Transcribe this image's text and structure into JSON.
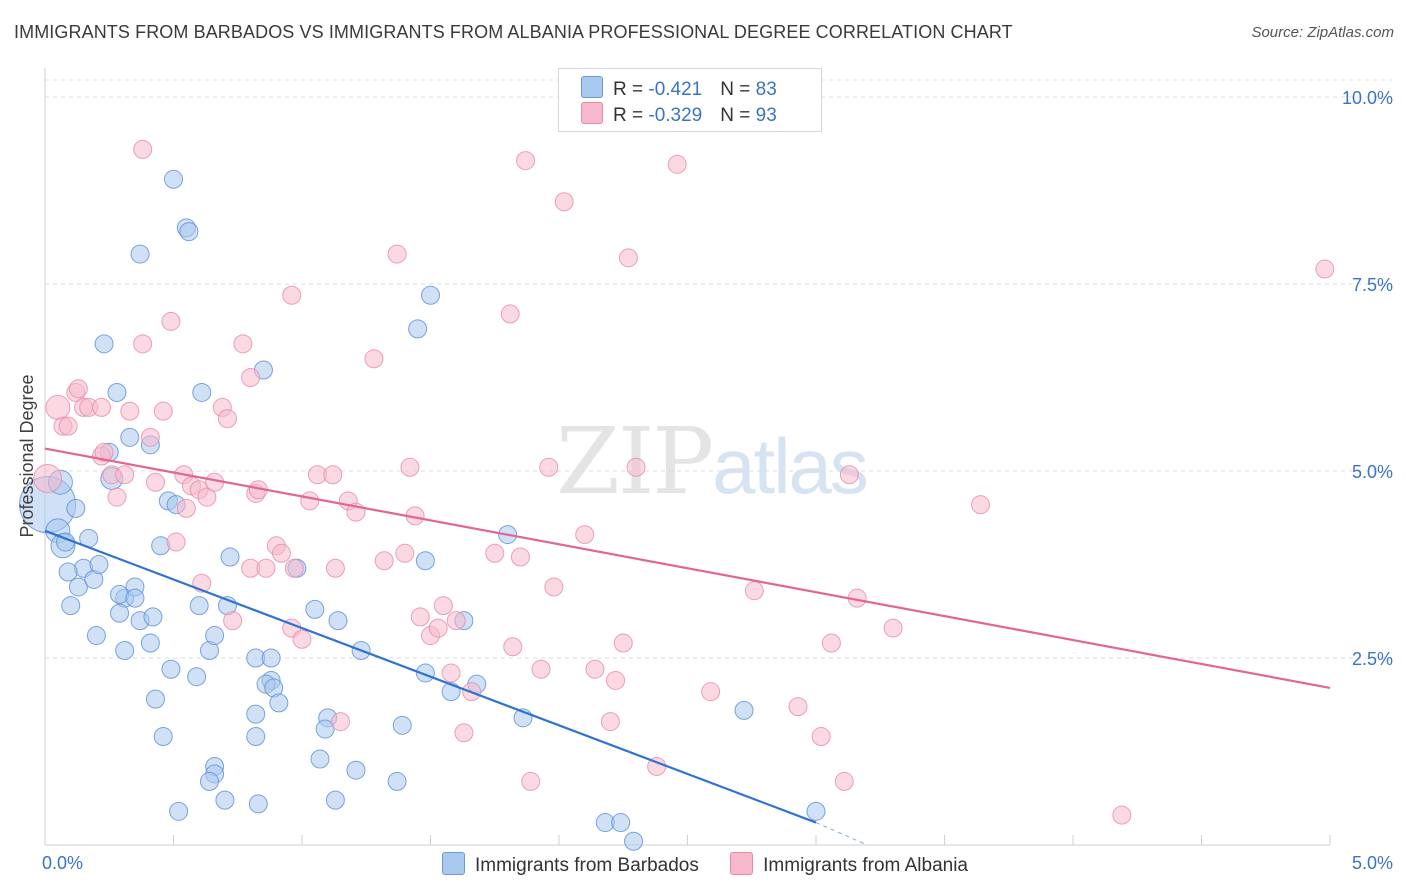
{
  "header": {
    "title": "IMMIGRANTS FROM BARBADOS VS IMMIGRANTS FROM ALBANIA PROFESSIONAL DEGREE CORRELATION CHART",
    "source": "Source: ZipAtlas.com"
  },
  "watermark": {
    "zip": "ZIP",
    "atlas": "atlas"
  },
  "legend": {
    "rows": [
      {
        "r_label": "R = ",
        "r_value": "-0.421",
        "n_label": "N = ",
        "n_value": "83",
        "color": "#a9c8ef"
      },
      {
        "r_label": "R = ",
        "r_value": "-0.329",
        "n_label": "N = ",
        "n_value": "93",
        "color": "#f6b9cc"
      }
    ]
  },
  "bottom_legend": [
    {
      "label": "Immigrants from Barbados",
      "color": "#a9c8ef"
    },
    {
      "label": "Immigrants from Albania",
      "color": "#f6b9cc"
    }
  ],
  "chart_data": {
    "type": "scatter",
    "title": "IMMIGRANTS FROM BARBADOS VS IMMIGRANTS FROM ALBANIA PROFESSIONAL DEGREE CORRELATION CHART",
    "xlabel": "",
    "ylabel": "Professional Degree",
    "xlim": [
      0,
      5
    ],
    "ylim": [
      0,
      10.5
    ],
    "x_tick_labels": [
      "0.0%",
      "5.0%"
    ],
    "y_ticks": [
      2.5,
      5.0,
      7.5,
      10.0
    ],
    "y_tick_labels": [
      "2.5%",
      "5.0%",
      "7.5%",
      "10.0%"
    ],
    "grid": true,
    "legend_position": "top-center",
    "series": [
      {
        "name": "Immigrants from Barbados",
        "color": "#a9c8ef",
        "stroke": "#5a8fd6",
        "trend": {
          "x": [
            0.0,
            3.0
          ],
          "y": [
            4.2,
            0.3
          ],
          "color": "#2f73d0",
          "dash_to": [
            3.2,
            0.0
          ]
        },
        "points": [
          [
            0.01,
            4.55,
            28
          ],
          [
            0.06,
            4.85,
            12
          ],
          [
            0.05,
            4.2,
            12
          ],
          [
            0.07,
            4.0,
            12
          ],
          [
            0.08,
            4.05,
            9
          ],
          [
            0.12,
            4.5,
            9
          ],
          [
            0.15,
            3.7,
            9
          ],
          [
            0.17,
            4.1,
            9
          ],
          [
            0.09,
            3.65,
            9
          ],
          [
            0.13,
            3.45,
            9
          ],
          [
            0.19,
            3.55,
            9
          ],
          [
            0.21,
            3.75,
            9
          ],
          [
            0.1,
            3.2,
            9
          ],
          [
            0.31,
            3.3,
            9
          ],
          [
            0.29,
            3.35,
            9
          ],
          [
            0.35,
            3.45,
            9
          ],
          [
            0.35,
            3.3,
            9
          ],
          [
            0.29,
            3.1,
            9
          ],
          [
            0.37,
            3.0,
            9
          ],
          [
            0.42,
            3.05,
            9
          ],
          [
            0.2,
            2.8,
            9
          ],
          [
            0.31,
            2.6,
            9
          ],
          [
            0.41,
            2.7,
            9
          ],
          [
            0.45,
            4.0,
            9
          ],
          [
            0.48,
            4.6,
            9
          ],
          [
            0.51,
            4.55,
            9
          ],
          [
            0.41,
            5.35,
            9
          ],
          [
            0.25,
            5.25,
            9
          ],
          [
            0.33,
            5.45,
            9
          ],
          [
            0.26,
            4.9,
            11
          ],
          [
            0.28,
            6.05,
            9
          ],
          [
            0.23,
            6.7,
            9
          ],
          [
            0.37,
            7.9,
            9
          ],
          [
            0.5,
            8.9,
            9
          ],
          [
            0.55,
            8.25,
            9
          ],
          [
            0.56,
            8.2,
            9
          ],
          [
            0.61,
            6.05,
            9
          ],
          [
            0.6,
            3.2,
            9
          ],
          [
            0.71,
            3.2,
            9
          ],
          [
            0.64,
            2.6,
            9
          ],
          [
            0.49,
            2.35,
            9
          ],
          [
            0.59,
            2.25,
            9
          ],
          [
            0.43,
            1.95,
            9
          ],
          [
            0.46,
            1.45,
            9
          ],
          [
            0.66,
            2.8,
            9
          ],
          [
            0.66,
            1.05,
            9
          ],
          [
            0.66,
            0.95,
            9
          ],
          [
            0.64,
            0.85,
            9
          ],
          [
            0.7,
            0.6,
            9
          ],
          [
            0.52,
            0.45,
            9
          ],
          [
            0.83,
            0.55,
            9
          ],
          [
            0.72,
            3.85,
            9
          ],
          [
            0.82,
            2.5,
            9
          ],
          [
            0.88,
            2.5,
            9
          ],
          [
            0.88,
            2.2,
            9
          ],
          [
            0.86,
            2.15,
            9
          ],
          [
            0.89,
            2.1,
            9
          ],
          [
            0.82,
            1.75,
            9
          ],
          [
            0.91,
            1.9,
            9
          ],
          [
            0.82,
            1.45,
            9
          ],
          [
            0.85,
            6.35,
            9
          ],
          [
            0.98,
            3.7,
            9
          ],
          [
            1.05,
            3.15,
            9
          ],
          [
            1.07,
            1.15,
            9
          ],
          [
            1.1,
            1.7,
            9
          ],
          [
            1.09,
            1.55,
            9
          ],
          [
            1.14,
            3.0,
            9
          ],
          [
            1.23,
            2.6,
            9
          ],
          [
            1.21,
            1.0,
            9
          ],
          [
            1.13,
            0.6,
            9
          ],
          [
            1.37,
            0.85,
            9
          ],
          [
            1.39,
            1.6,
            9
          ],
          [
            1.45,
            6.9,
            9
          ],
          [
            1.5,
            7.35,
            9
          ],
          [
            1.48,
            3.8,
            9
          ],
          [
            1.48,
            2.3,
            9
          ],
          [
            1.58,
            2.05,
            9
          ],
          [
            1.63,
            3.0,
            9
          ],
          [
            1.68,
            2.15,
            9
          ],
          [
            1.8,
            4.15,
            9
          ],
          [
            1.86,
            1.7,
            9
          ],
          [
            2.18,
            0.3,
            9
          ],
          [
            2.24,
            0.3,
            9
          ],
          [
            2.29,
            0.05,
            9
          ],
          [
            2.72,
            1.8,
            9
          ],
          [
            3.0,
            0.45,
            9
          ]
        ]
      },
      {
        "name": "Immigrants from Albania",
        "color": "#f6b9cc",
        "stroke": "#e88aa8",
        "trend": {
          "x": [
            0.0,
            5.0
          ],
          "y": [
            5.3,
            2.1
          ],
          "color": "#e16692"
        },
        "points": [
          [
            0.01,
            4.9,
            14
          ],
          [
            0.05,
            5.85,
            12
          ],
          [
            0.07,
            5.6,
            9
          ],
          [
            0.09,
            5.6,
            9
          ],
          [
            0.12,
            6.05,
            9
          ],
          [
            0.13,
            6.1,
            9
          ],
          [
            0.15,
            5.85,
            9
          ],
          [
            0.17,
            5.85,
            9
          ],
          [
            0.22,
            5.85,
            9
          ],
          [
            0.22,
            5.2,
            9
          ],
          [
            0.23,
            5.25,
            9
          ],
          [
            0.26,
            4.95,
            9
          ],
          [
            0.28,
            4.65,
            9
          ],
          [
            0.31,
            4.95,
            9
          ],
          [
            0.33,
            5.8,
            9
          ],
          [
            0.38,
            9.3,
            9
          ],
          [
            0.38,
            6.7,
            9
          ],
          [
            0.41,
            5.45,
            9
          ],
          [
            0.43,
            4.85,
            9
          ],
          [
            0.46,
            5.8,
            9
          ],
          [
            0.49,
            7.0,
            9
          ],
          [
            0.51,
            4.05,
            9
          ],
          [
            0.54,
            4.95,
            9
          ],
          [
            0.55,
            4.5,
            9
          ],
          [
            0.57,
            4.8,
            9
          ],
          [
            0.6,
            4.75,
            9
          ],
          [
            0.63,
            4.65,
            9
          ],
          [
            0.66,
            4.85,
            9
          ],
          [
            0.61,
            3.5,
            9
          ],
          [
            0.69,
            5.85,
            9
          ],
          [
            0.71,
            5.7,
            9
          ],
          [
            0.73,
            3.0,
            9
          ],
          [
            0.77,
            6.7,
            9
          ],
          [
            0.8,
            6.25,
            9
          ],
          [
            0.82,
            4.7,
            9
          ],
          [
            0.83,
            4.75,
            9
          ],
          [
            0.8,
            3.7,
            9
          ],
          [
            0.86,
            3.7,
            9
          ],
          [
            0.9,
            4.0,
            9
          ],
          [
            0.92,
            3.9,
            9
          ],
          [
            0.96,
            2.9,
            9
          ],
          [
            0.97,
            3.7,
            9
          ],
          [
            1.0,
            2.75,
            9
          ],
          [
            0.96,
            7.35,
            9
          ],
          [
            1.03,
            4.6,
            9
          ],
          [
            1.06,
            4.95,
            9
          ],
          [
            1.12,
            4.95,
            9
          ],
          [
            1.13,
            3.7,
            9
          ],
          [
            1.15,
            1.65,
            9
          ],
          [
            1.18,
            4.6,
            9
          ],
          [
            1.21,
            4.45,
            9
          ],
          [
            1.28,
            6.5,
            9
          ],
          [
            1.32,
            3.8,
            9
          ],
          [
            1.37,
            7.9,
            9
          ],
          [
            1.4,
            3.9,
            9
          ],
          [
            1.42,
            5.05,
            9
          ],
          [
            1.44,
            4.4,
            9
          ],
          [
            1.46,
            3.05,
            9
          ],
          [
            1.5,
            2.8,
            9
          ],
          [
            1.53,
            2.9,
            9
          ],
          [
            1.55,
            3.2,
            9
          ],
          [
            1.58,
            2.3,
            9
          ],
          [
            1.6,
            3.0,
            9
          ],
          [
            1.63,
            1.5,
            9
          ],
          [
            1.66,
            2.05,
            9
          ],
          [
            1.75,
            3.9,
            9
          ],
          [
            1.81,
            7.1,
            9
          ],
          [
            1.82,
            2.65,
            9
          ],
          [
            1.85,
            3.85,
            9
          ],
          [
            1.87,
            9.15,
            9
          ],
          [
            1.89,
            0.85,
            9
          ],
          [
            1.93,
            2.35,
            9
          ],
          [
            1.96,
            5.05,
            9
          ],
          [
            1.98,
            3.45,
            9
          ],
          [
            2.02,
            8.6,
            9
          ],
          [
            2.1,
            4.15,
            9
          ],
          [
            2.14,
            2.35,
            9
          ],
          [
            2.2,
            1.65,
            9
          ],
          [
            2.22,
            2.2,
            9
          ],
          [
            2.25,
            2.7,
            9
          ],
          [
            2.27,
            7.85,
            9
          ],
          [
            2.3,
            5.05,
            9
          ],
          [
            2.38,
            1.05,
            9
          ],
          [
            2.46,
            9.1,
            9
          ],
          [
            2.59,
            2.05,
            9
          ],
          [
            2.76,
            3.4,
            9
          ],
          [
            2.93,
            1.85,
            9
          ],
          [
            3.02,
            1.45,
            9
          ],
          [
            3.06,
            2.7,
            9
          ],
          [
            3.11,
            0.85,
            9
          ],
          [
            3.13,
            4.95,
            9
          ],
          [
            3.16,
            3.3,
            9
          ],
          [
            3.3,
            2.9,
            9
          ],
          [
            3.64,
            4.55,
            9
          ],
          [
            4.19,
            0.4,
            9
          ],
          [
            4.98,
            7.7,
            9
          ]
        ]
      }
    ]
  }
}
